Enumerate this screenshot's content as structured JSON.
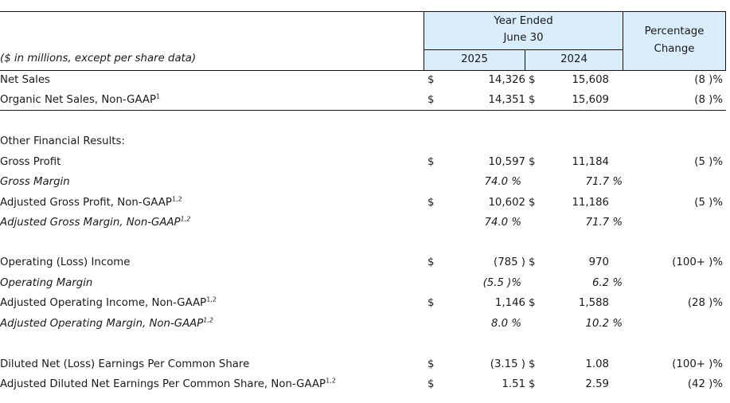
{
  "header": {
    "note": "($ in millions, except per share data)",
    "year_ended_l1": "Year Ended",
    "year_ended_l2": "June 30",
    "year_a": "2025",
    "year_b": "2024",
    "pct_l1": "Percentage",
    "pct_l2": "Change"
  },
  "rows": [
    {
      "label": "Net Sales",
      "sup": "",
      "italic": false,
      "s1": "$",
      "v1": "14,326",
      "s2": "$",
      "v2": "15,608",
      "pct": "(8 )%"
    },
    {
      "label": "Organic Net Sales, Non-GAAP",
      "sup": "1",
      "italic": false,
      "s1": "$",
      "v1": "14,351",
      "s2": "$",
      "v2": "15,609",
      "pct": "(8 )%"
    },
    {
      "label": "Other Financial Results:",
      "sup": "",
      "italic": false,
      "s1": "",
      "v1": "",
      "s2": "",
      "v2": "",
      "pct": ""
    },
    {
      "label": "Gross Profit",
      "sup": "",
      "italic": false,
      "s1": "$",
      "v1": "10,597",
      "s2": "$",
      "v2": "11,184",
      "pct": "(5 )%"
    },
    {
      "label": "Gross Margin",
      "sup": "",
      "italic": true,
      "s1": "",
      "v1": "74.0 %",
      "s2": "",
      "v2": "71.7 %",
      "pct": ""
    },
    {
      "label": "Adjusted Gross Profit, Non-GAAP",
      "sup": "1,2",
      "italic": false,
      "s1": "$",
      "v1": "10,602",
      "s2": "$",
      "v2": "11,186",
      "pct": "(5 )%"
    },
    {
      "label": "Adjusted Gross Margin, Non-GAAP",
      "sup": "1,2",
      "italic": true,
      "s1": "",
      "v1": "74.0 %",
      "s2": "",
      "v2": "71.7 %",
      "pct": ""
    },
    {
      "label": "Operating (Loss) Income",
      "sup": "",
      "italic": false,
      "s1": "$",
      "v1": "(785 )",
      "s2": "$",
      "v2": "970",
      "pct": "(100+ )%"
    },
    {
      "label": "Operating Margin",
      "sup": "",
      "italic": true,
      "s1": "",
      "v1": "(5.5 )%",
      "s2": "",
      "v2": "6.2 %",
      "pct": ""
    },
    {
      "label": "Adjusted Operating Income, Non-GAAP",
      "sup": "1,2",
      "italic": false,
      "s1": "$",
      "v1": "1,146",
      "s2": "$",
      "v2": "1,588",
      "pct": "(28 )%"
    },
    {
      "label": "Adjusted Operating Margin, Non-GAAP",
      "sup": "1,2",
      "italic": true,
      "s1": "",
      "v1": "8.0 %",
      "s2": "",
      "v2": "10.2 %",
      "pct": ""
    },
    {
      "label": "Diluted Net (Loss) Earnings Per Common Share",
      "sup": "",
      "italic": false,
      "s1": "$",
      "v1": "(3.15 )",
      "s2": "$",
      "v2": "1.08",
      "pct": "(100+ )%"
    },
    {
      "label": "Adjusted Diluted Net Earnings Per Common Share, Non-GAAP",
      "sup": "1,2",
      "italic": false,
      "s1": "$",
      "v1": "1.51",
      "s2": "$",
      "v2": "2.59",
      "pct": "(42 )%"
    }
  ]
}
